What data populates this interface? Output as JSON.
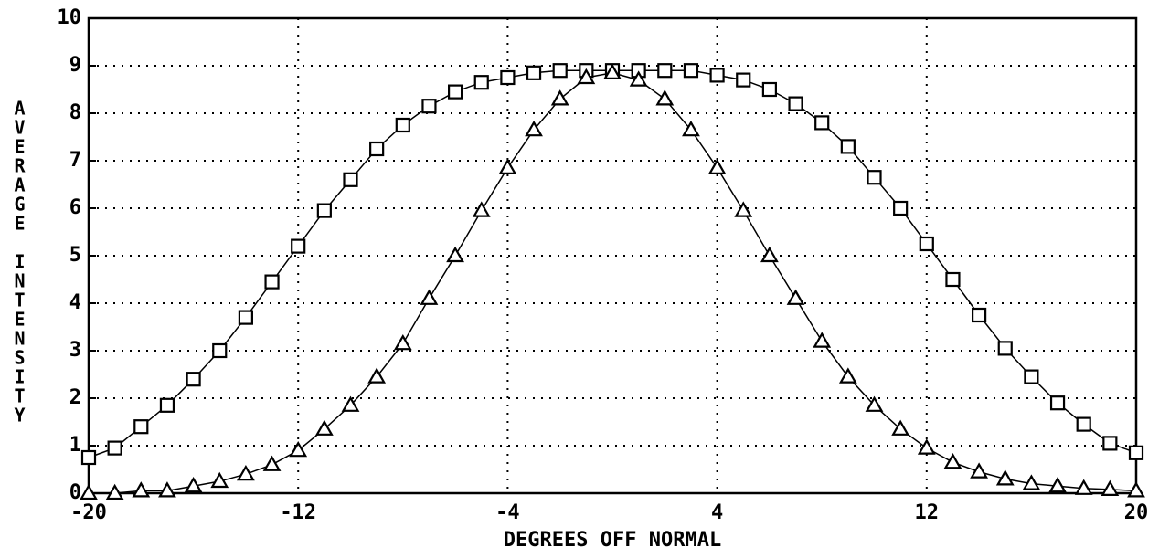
{
  "chart_data": {
    "type": "line",
    "x_label": "DEGREES OFF NORMAL",
    "y_label": "AVERAGE INTENSITY",
    "x": [
      -20,
      -19,
      -18,
      -17,
      -16,
      -15,
      -14,
      -13,
      -12,
      -11,
      -10,
      -9,
      -8,
      -7,
      -6,
      -5,
      -4,
      -3,
      -2,
      -1,
      0,
      1,
      2,
      3,
      4,
      5,
      6,
      7,
      8,
      9,
      10,
      11,
      12,
      13,
      14,
      15,
      16,
      17,
      18,
      19,
      20
    ],
    "series": [
      {
        "color": "#000000",
        "marker": "square",
        "values": [
          0.75,
          0.95,
          1.4,
          1.85,
          2.4,
          3.0,
          3.7,
          4.45,
          5.2,
          5.95,
          6.6,
          7.25,
          7.75,
          8.15,
          8.45,
          8.65,
          8.75,
          8.85,
          8.9,
          8.9,
          8.9,
          8.9,
          8.9,
          8.9,
          8.8,
          8.7,
          8.5,
          8.2,
          7.8,
          7.3,
          6.65,
          6.0,
          5.25,
          4.5,
          3.75,
          3.05,
          2.45,
          1.9,
          1.45,
          1.05,
          0.85
        ]
      },
      {
        "color": "#000000",
        "marker": "triangle",
        "values": [
          0.0,
          0.0,
          0.05,
          0.05,
          0.15,
          0.25,
          0.4,
          0.6,
          0.9,
          1.35,
          1.85,
          2.45,
          3.15,
          4.1,
          5.0,
          5.95,
          6.85,
          7.65,
          8.3,
          8.75,
          8.85,
          8.7,
          8.3,
          7.65,
          6.85,
          5.95,
          5.0,
          4.1,
          3.2,
          2.45,
          1.85,
          1.35,
          0.95,
          0.65,
          0.45,
          0.3,
          0.2,
          0.15,
          0.1,
          0.08,
          0.05
        ]
      }
    ],
    "xlim": [
      -20,
      20
    ],
    "xticks": [
      -20,
      -12,
      -4,
      4,
      12,
      20
    ],
    "ylim": [
      0,
      10
    ],
    "yticks": [
      0,
      1,
      2,
      3,
      4,
      5,
      6,
      7,
      8,
      9,
      10
    ],
    "grid": true
  }
}
